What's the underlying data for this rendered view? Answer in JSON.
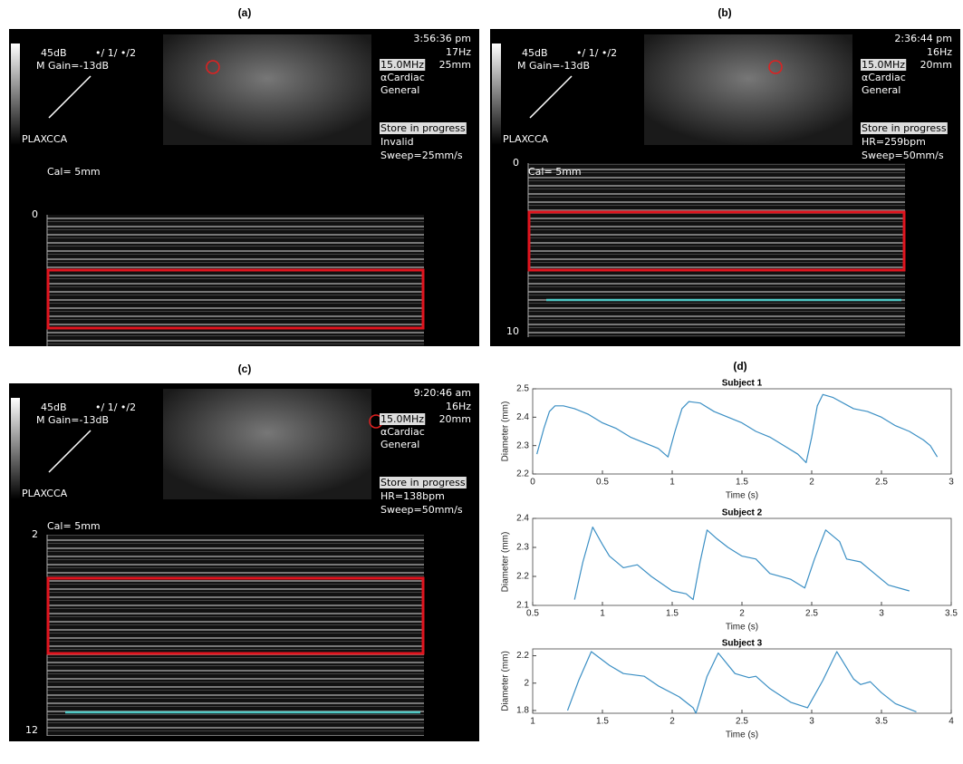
{
  "panels": [
    "(a)",
    "(b)",
    "(c)",
    "(d)"
  ],
  "screens": [
    {
      "db": "45dB",
      "mode": "•/ 1/ •/2",
      "gain": "M Gain=-13dB",
      "view": "PLAXCCA",
      "time": "3:56:36 pm",
      "frame_rate": "17Hz",
      "depth": "25mm",
      "frequency": "15.0MHz",
      "preset": "αCardiac",
      "preset2": "General",
      "status": "Store in progress",
      "status2": "Invalid",
      "sweep": "Sweep=25mm/s",
      "cal": "Cal= 5mm",
      "depth_top": "0"
    },
    {
      "db": "45dB",
      "mode": "•/ 1/ •/2",
      "gain": "M Gain=-13dB",
      "view": "PLAXCCA",
      "time": "2:36:44 pm",
      "frame_rate": "16Hz",
      "depth": "20mm",
      "frequency": "15.0MHz",
      "preset": "αCardiac",
      "preset2": "General",
      "status": "Store in progress",
      "status2": "HR=259bpm",
      "sweep": "Sweep=50mm/s",
      "cal": "Cal= 5mm",
      "depth_top": "0",
      "depth_bottom": "10"
    },
    {
      "db": "45dB",
      "mode": "•/ 1/ •/2",
      "gain": "M Gain=-13dB",
      "view": "PLAXCCA",
      "time": "9:20:46 am",
      "frame_rate": "16Hz",
      "depth": "20mm",
      "frequency": "15.0MHz",
      "preset": "αCardiac",
      "preset2": "General",
      "status": "Store in progress",
      "status2": "HR=138bpm",
      "sweep": "Sweep=50mm/s",
      "cal": "Cal= 5mm",
      "depth_top": "2",
      "depth_bottom": "12"
    }
  ],
  "chart_data": [
    {
      "type": "line",
      "title": "Subject 1",
      "xlabel": "Time (s)",
      "ylabel": "Diameter (mm)",
      "color": "#3b8fc4",
      "x": [
        0.03,
        0.08,
        0.12,
        0.16,
        0.22,
        0.3,
        0.4,
        0.5,
        0.6,
        0.7,
        0.8,
        0.9,
        0.97,
        1.02,
        1.07,
        1.12,
        1.2,
        1.3,
        1.4,
        1.5,
        1.6,
        1.7,
        1.8,
        1.9,
        1.96,
        2.0,
        2.04,
        2.08,
        2.15,
        2.3,
        2.4,
        2.5,
        2.6,
        2.7,
        2.8,
        2.85,
        2.9
      ],
      "values": [
        2.27,
        2.36,
        2.42,
        2.44,
        2.44,
        2.43,
        2.41,
        2.38,
        2.36,
        2.33,
        2.31,
        2.29,
        2.26,
        2.35,
        2.43,
        2.455,
        2.45,
        2.42,
        2.4,
        2.38,
        2.35,
        2.33,
        2.3,
        2.27,
        2.24,
        2.33,
        2.44,
        2.48,
        2.47,
        2.43,
        2.42,
        2.4,
        2.37,
        2.35,
        2.32,
        2.3,
        2.26
      ],
      "xlim": [
        0,
        3
      ],
      "ylim": [
        2.2,
        2.5
      ],
      "xticks": [
        0,
        0.5,
        1,
        1.5,
        2,
        2.5,
        3
      ],
      "yticks": [
        2.2,
        2.3,
        2.4,
        2.5
      ]
    },
    {
      "type": "line",
      "title": "Subject 2",
      "xlabel": "Time (s)",
      "ylabel": "Diameter (mm)",
      "color": "#3b8fc4",
      "x": [
        0.8,
        0.86,
        0.93,
        1.0,
        1.05,
        1.15,
        1.25,
        1.35,
        1.5,
        1.6,
        1.65,
        1.7,
        1.75,
        1.82,
        1.9,
        2.0,
        2.1,
        2.2,
        2.35,
        2.45,
        2.52,
        2.6,
        2.7,
        2.75,
        2.85,
        2.95,
        3.05,
        3.2
      ],
      "values": [
        2.12,
        2.25,
        2.37,
        2.31,
        2.27,
        2.23,
        2.24,
        2.2,
        2.15,
        2.14,
        2.12,
        2.25,
        2.36,
        2.33,
        2.3,
        2.27,
        2.26,
        2.21,
        2.19,
        2.16,
        2.26,
        2.36,
        2.32,
        2.26,
        2.25,
        2.21,
        2.17,
        2.15
      ],
      "xlim": [
        0.5,
        3.5
      ],
      "ylim": [
        2.1,
        2.4
      ],
      "xticks": [
        0.5,
        1,
        1.5,
        2,
        2.5,
        3,
        3.5
      ],
      "yticks": [
        2.1,
        2.2,
        2.3,
        2.4
      ]
    },
    {
      "type": "line",
      "title": "Subject 3",
      "xlabel": "Time (s)",
      "ylabel": "Diameter (mm)",
      "color": "#3b8fc4",
      "x": [
        1.25,
        1.33,
        1.42,
        1.55,
        1.65,
        1.8,
        1.9,
        2.05,
        2.15,
        2.17,
        2.25,
        2.33,
        2.45,
        2.55,
        2.6,
        2.7,
        2.85,
        2.97,
        3.08,
        3.18,
        3.3,
        3.35,
        3.42,
        3.5,
        3.6,
        3.75
      ],
      "values": [
        1.8,
        2.02,
        2.23,
        2.13,
        2.07,
        2.05,
        1.98,
        1.9,
        1.82,
        1.78,
        2.05,
        2.22,
        2.07,
        2.04,
        2.05,
        1.96,
        1.86,
        1.82,
        2.02,
        2.23,
        2.03,
        1.99,
        2.01,
        1.93,
        1.85,
        1.79
      ],
      "xlim": [
        1,
        4
      ],
      "ylim": [
        1.78,
        2.25
      ],
      "xticks": [
        1,
        1.5,
        2,
        2.5,
        3,
        3.5,
        4
      ],
      "yticks": [
        1.8,
        2,
        2.2
      ]
    }
  ]
}
